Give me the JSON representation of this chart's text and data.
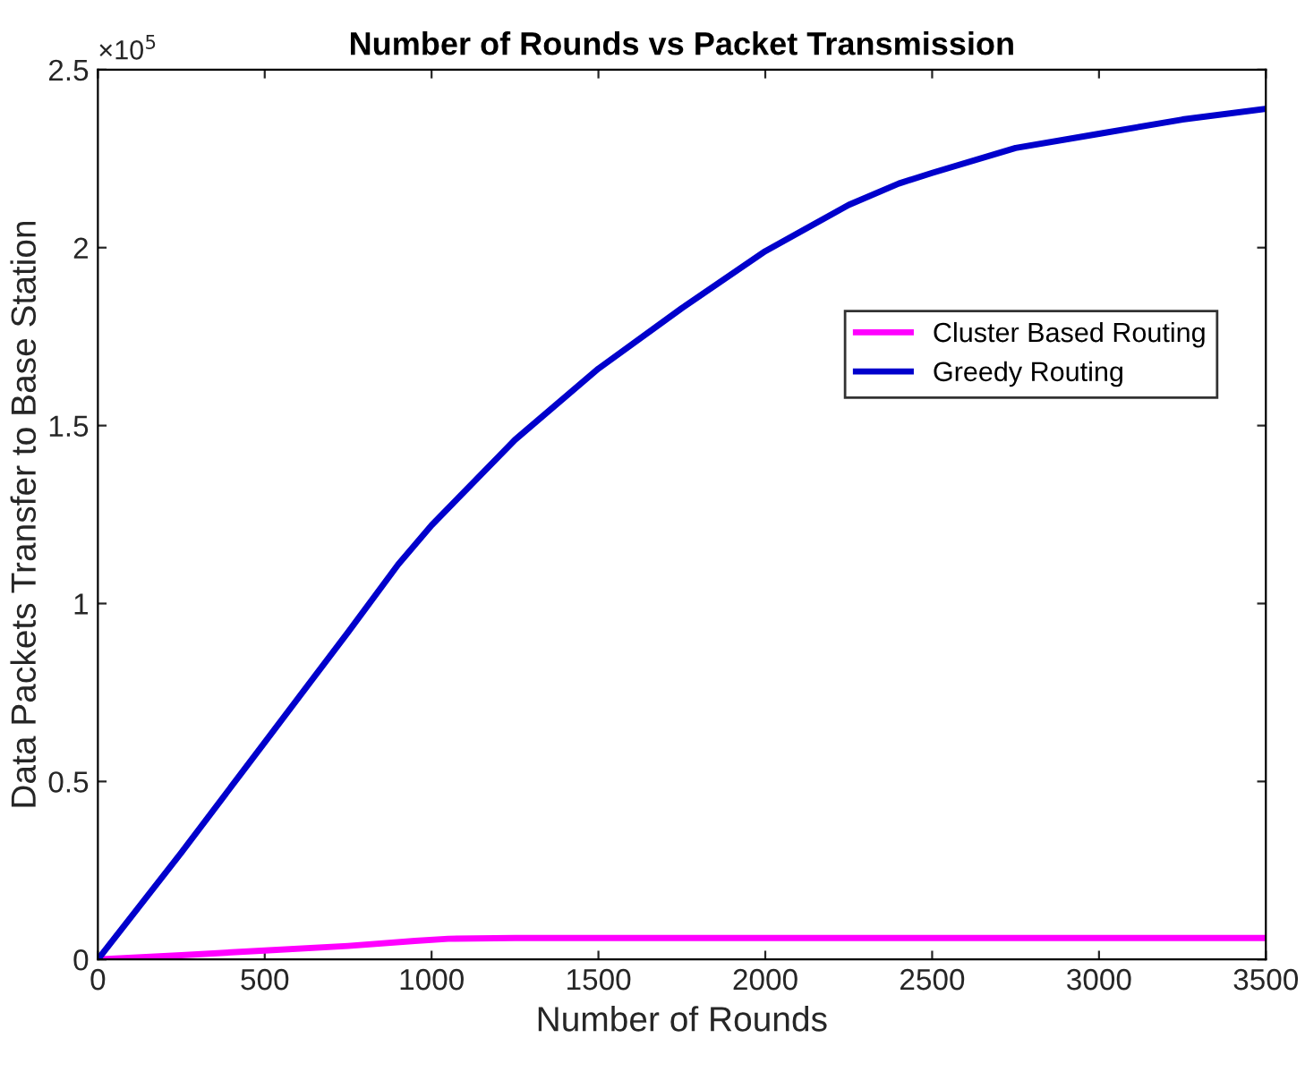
{
  "chart_data": {
    "type": "line",
    "title": "Number of Rounds vs Packet Transmission",
    "xlabel": "Number of Rounds",
    "ylabel": "Data Packets Transfer to Base Station",
    "annotations": [
      "×10$^{5}$"
    ],
    "series": [
      {
        "name": "Cluster Based Routing",
        "color": "#ff00ff",
        "x": [
          0,
          250,
          500,
          750,
          950,
          1050,
          1250,
          1500,
          2000,
          2500,
          3000,
          3500
        ],
        "values": [
          0,
          0.012,
          0.025,
          0.038,
          0.052,
          0.058,
          0.06,
          0.06,
          0.06,
          0.06,
          0.06,
          0.06
        ]
      },
      {
        "name": "Greedy Routing",
        "color": "#0000cc",
        "x": [
          0,
          250,
          500,
          750,
          900,
          1000,
          1250,
          1500,
          1750,
          2000,
          2250,
          2400,
          2500,
          2750,
          3000,
          3250,
          3500
        ],
        "values": [
          0,
          0.3,
          0.61,
          0.92,
          1.11,
          1.22,
          1.46,
          1.66,
          1.83,
          1.99,
          2.12,
          2.18,
          2.21,
          2.28,
          2.32,
          2.36,
          2.39
        ]
      }
    ],
    "xlim": [
      0,
      3500
    ],
    "xticks": [
      0,
      500,
      1000,
      1500,
      2000,
      2500,
      3000,
      3500
    ],
    "ylim": [
      0,
      2.5
    ],
    "yticks": [
      0,
      0.5,
      1,
      1.5,
      2,
      2.5
    ],
    "grid": false,
    "legend": "right",
    "line_style": "solid",
    "marker": "none"
  }
}
